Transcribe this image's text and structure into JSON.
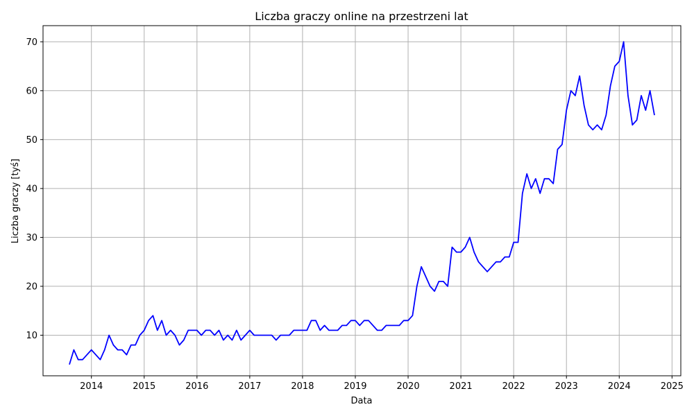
{
  "chart_data": {
    "type": "line",
    "title": "Liczba graczy online na przestrzeni lat",
    "xlabel": "Data",
    "ylabel": "Liczba graczy [tyś]",
    "x_ticks": [
      "2014",
      "2015",
      "2016",
      "2017",
      "2018",
      "2019",
      "2020",
      "2021",
      "2022",
      "2023",
      "2024",
      "2025"
    ],
    "y_ticks": [
      10,
      20,
      30,
      40,
      50,
      60,
      70
    ],
    "xlim": [
      "2013-02",
      "2025-03"
    ],
    "ylim": [
      1.7,
      73.3
    ],
    "grid": true,
    "series": [
      {
        "color": "#0000ff",
        "points": [
          [
            "2013-08",
            4
          ],
          [
            "2013-09",
            7
          ],
          [
            "2013-10",
            5
          ],
          [
            "2013-11",
            5
          ],
          [
            "2014-01",
            7
          ],
          [
            "2014-03",
            5
          ],
          [
            "2014-04",
            7
          ],
          [
            "2014-05",
            10
          ],
          [
            "2014-06",
            8
          ],
          [
            "2014-07",
            7
          ],
          [
            "2014-08",
            7
          ],
          [
            "2014-09",
            6
          ],
          [
            "2014-10",
            8
          ],
          [
            "2014-11",
            8
          ],
          [
            "2014-12",
            10
          ],
          [
            "2015-01",
            11
          ],
          [
            "2015-02",
            13
          ],
          [
            "2015-03",
            14
          ],
          [
            "2015-04",
            11
          ],
          [
            "2015-05",
            13
          ],
          [
            "2015-06",
            10
          ],
          [
            "2015-07",
            11
          ],
          [
            "2015-08",
            10
          ],
          [
            "2015-09",
            8
          ],
          [
            "2015-10",
            9
          ],
          [
            "2015-11",
            11
          ],
          [
            "2016-01",
            11
          ],
          [
            "2016-02",
            10
          ],
          [
            "2016-03",
            11
          ],
          [
            "2016-04",
            11
          ],
          [
            "2016-05",
            10
          ],
          [
            "2016-06",
            11
          ],
          [
            "2016-07",
            9
          ],
          [
            "2016-08",
            10
          ],
          [
            "2016-09",
            9
          ],
          [
            "2016-10",
            11
          ],
          [
            "2016-11",
            9
          ],
          [
            "2017-01",
            11
          ],
          [
            "2017-02",
            10
          ],
          [
            "2017-06",
            10
          ],
          [
            "2017-07",
            9
          ],
          [
            "2017-08",
            10
          ],
          [
            "2017-10",
            10
          ],
          [
            "2017-11",
            11
          ],
          [
            "2018-02",
            11
          ],
          [
            "2018-03",
            13
          ],
          [
            "2018-04",
            13
          ],
          [
            "2018-05",
            11
          ],
          [
            "2018-06",
            12
          ],
          [
            "2018-07",
            11
          ],
          [
            "2018-09",
            11
          ],
          [
            "2018-10",
            12
          ],
          [
            "2018-11",
            12
          ],
          [
            "2018-12",
            13
          ],
          [
            "2019-01",
            13
          ],
          [
            "2019-02",
            12
          ],
          [
            "2019-03",
            13
          ],
          [
            "2019-04",
            13
          ],
          [
            "2019-06",
            11
          ],
          [
            "2019-07",
            11
          ],
          [
            "2019-08",
            12
          ],
          [
            "2019-11",
            12
          ],
          [
            "2019-12",
            13
          ],
          [
            "2020-01",
            13
          ],
          [
            "2020-02",
            14
          ],
          [
            "2020-03",
            20
          ],
          [
            "2020-04",
            24
          ],
          [
            "2020-05",
            22
          ],
          [
            "2020-06",
            20
          ],
          [
            "2020-07",
            19
          ],
          [
            "2020-08",
            21
          ],
          [
            "2020-09",
            21
          ],
          [
            "2020-10",
            20
          ],
          [
            "2020-11",
            28
          ],
          [
            "2020-12",
            27
          ],
          [
            "2021-01",
            27
          ],
          [
            "2021-02",
            28
          ],
          [
            "2021-03",
            30
          ],
          [
            "2021-04",
            27
          ],
          [
            "2021-05",
            25
          ],
          [
            "2021-07",
            23
          ],
          [
            "2021-09",
            25
          ],
          [
            "2021-10",
            25
          ],
          [
            "2021-11",
            26
          ],
          [
            "2021-12",
            26
          ],
          [
            "2022-01",
            29
          ],
          [
            "2022-02",
            29
          ],
          [
            "2022-03",
            39
          ],
          [
            "2022-04",
            43
          ],
          [
            "2022-05",
            40
          ],
          [
            "2022-06",
            42
          ],
          [
            "2022-07",
            39
          ],
          [
            "2022-08",
            42
          ],
          [
            "2022-09",
            42
          ],
          [
            "2022-10",
            41
          ],
          [
            "2022-11",
            48
          ],
          [
            "2022-12",
            49
          ],
          [
            "2023-01",
            56
          ],
          [
            "2023-02",
            60
          ],
          [
            "2023-03",
            59
          ],
          [
            "2023-04",
            63
          ],
          [
            "2023-05",
            57
          ],
          [
            "2023-06",
            53
          ],
          [
            "2023-07",
            52
          ],
          [
            "2023-08",
            53
          ],
          [
            "2023-09",
            52
          ],
          [
            "2023-10",
            55
          ],
          [
            "2023-11",
            61
          ],
          [
            "2023-12",
            65
          ],
          [
            "2024-01",
            66
          ],
          [
            "2024-02",
            70
          ],
          [
            "2024-03",
            59
          ],
          [
            "2024-04",
            53
          ],
          [
            "2024-05",
            54
          ],
          [
            "2024-06",
            59
          ],
          [
            "2024-07",
            56
          ],
          [
            "2024-08",
            60
          ],
          [
            "2024-09",
            55
          ]
        ]
      }
    ]
  }
}
